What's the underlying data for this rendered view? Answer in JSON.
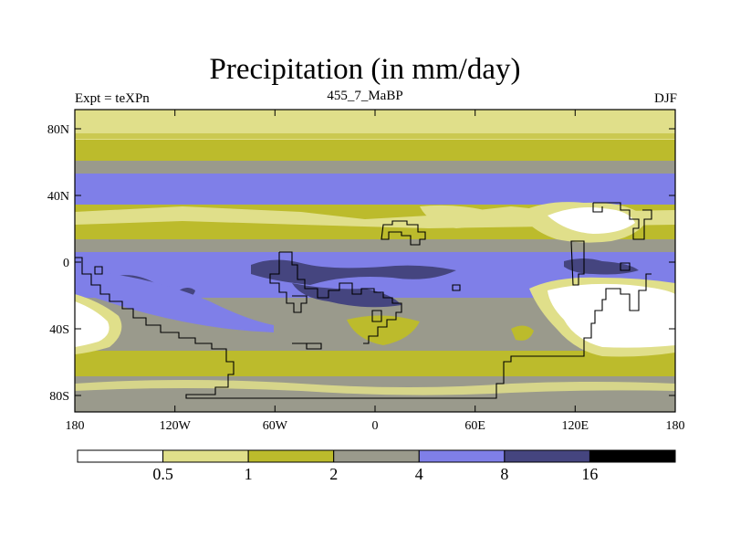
{
  "title": "Precipitation (in mm/day)",
  "left_label": "Expt = teXPn",
  "center_label": "455_7_MaBP",
  "right_label": "DJF",
  "lat_labels": [
    "80N",
    "40N",
    "0",
    "40S",
    "80S"
  ],
  "lon_labels": [
    "180",
    "120W",
    "60W",
    "0",
    "60E",
    "120E",
    "180"
  ],
  "colorbar": {
    "colors": [
      "#ffffff",
      "#e0df8a",
      "#bcbb2c",
      "#9a9a8c",
      "#7f7fe8",
      "#45457f",
      "#000000"
    ],
    "labels": [
      "0.5",
      "1",
      "2",
      "4",
      "8",
      "16"
    ]
  }
}
